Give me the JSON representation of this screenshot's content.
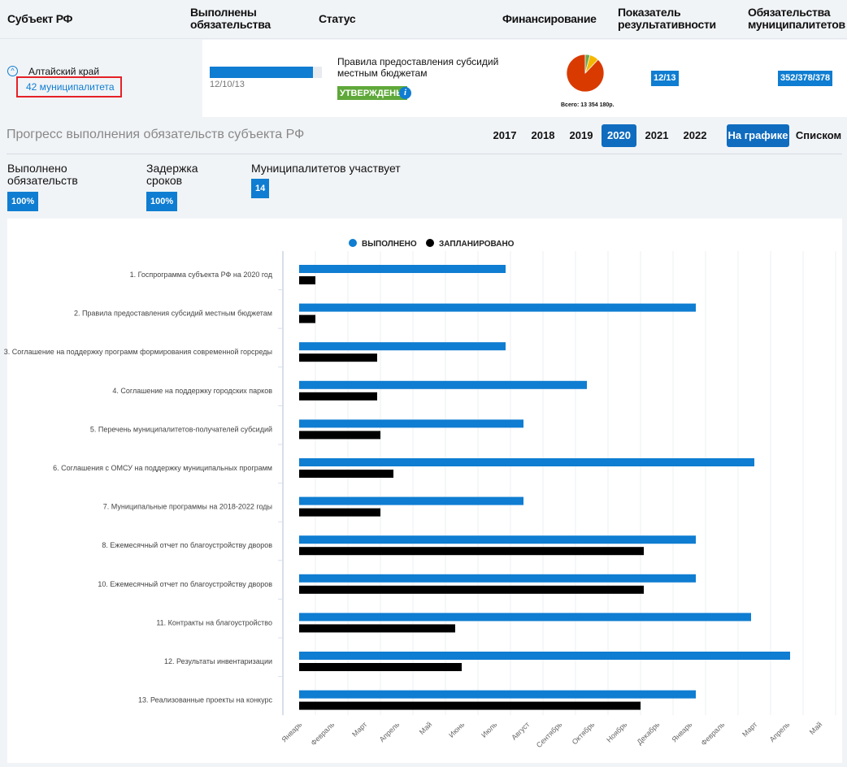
{
  "header": {
    "col_subject": "Субъект РФ",
    "col_done": "Выполнены обязательства",
    "col_status": "Статус",
    "col_funding": "Финансирование",
    "col_indicator": "Показатель результативности",
    "col_muni": "Обязательства муниципалитетов"
  },
  "row": {
    "region": "Алтайский край",
    "municipalities_link": "42 муниципалитета",
    "progress_percent": 92,
    "progress_text": "12/10/13",
    "status_text": "Правила предоставления субсидий местным бюджетам",
    "status_badge": "УТВЕРЖДЕНЫ",
    "funding_total": "Всего: 13 354 180р.",
    "funding_pie": [
      {
        "share": 0.88,
        "color": "#d93a00"
      },
      {
        "share": 0.08,
        "color": "#f5b800"
      },
      {
        "share": 0.04,
        "color": "#6aa84f"
      }
    ],
    "indicator": "12/13",
    "muni_obligations": "352/378/378"
  },
  "progress": {
    "title": "Прогресс выполнения обязательств субъекта РФ",
    "years": [
      "2017",
      "2018",
      "2019",
      "2020",
      "2021",
      "2022"
    ],
    "selected_year": "2020",
    "view_chart": "На графике",
    "view_list": "Списком"
  },
  "stats": [
    {
      "label1": "Выполнено",
      "label2": "обязательств",
      "value": "100%"
    },
    {
      "label1": "Задержка",
      "label2": "сроков",
      "value": "100%"
    },
    {
      "label1": "Муниципалитетов участвует",
      "label2": "",
      "value": "14"
    }
  ],
  "chart_data": {
    "type": "bar",
    "orientation": "horizontal",
    "title": "",
    "grid": true,
    "legend_placement": "top-center",
    "x_ticks": [
      "Январь",
      "Февраль",
      "Март",
      "Апрель",
      "Май",
      "Июнь",
      "Июль",
      "Август",
      "Сентябрь",
      "Октябрь",
      "Ноябрь",
      "Декабрь",
      "Январь",
      "Февраль",
      "Март",
      "Апрель",
      "Май"
    ],
    "x_unit": "months from start of January 2020",
    "xlim": [
      0,
      16.5
    ],
    "categories": [
      "1. Госпрограмма субъекта РФ на 2020 год",
      "2. Правила предоставления субсидий местным бюджетам",
      "3. Соглашение на поддержку программ формирования современной горсреды",
      "4. Соглашение на поддержку городских парков",
      "5. Перечень муниципалитетов-получателей субсидий",
      "6. Соглашения с ОМСУ на поддержку муниципальных программ",
      "7. Муниципальные программы на 2018-2022 годы",
      "8. Ежемесячный отчет по благоустройству дворов",
      "10. Ежемесячный отчет по благоустройству дворов",
      "11. Контракты на благоустройство",
      "12. Результаты инвентаризации",
      "13. Реализованные проекты на конкурс"
    ],
    "series": [
      {
        "name": "ВЫПОЛНЕНО",
        "color": "#0f7dd1",
        "values": [
          6.35,
          12.2,
          6.35,
          8.85,
          6.9,
          14.0,
          6.9,
          12.2,
          12.2,
          13.9,
          15.1,
          12.2
        ]
      },
      {
        "name": "ЗАПЛАНИРОВАНО",
        "color": "#000000",
        "values": [
          0.5,
          0.5,
          2.4,
          2.4,
          2.5,
          2.9,
          2.5,
          10.6,
          10.6,
          4.8,
          5.0,
          10.5
        ]
      }
    ]
  }
}
